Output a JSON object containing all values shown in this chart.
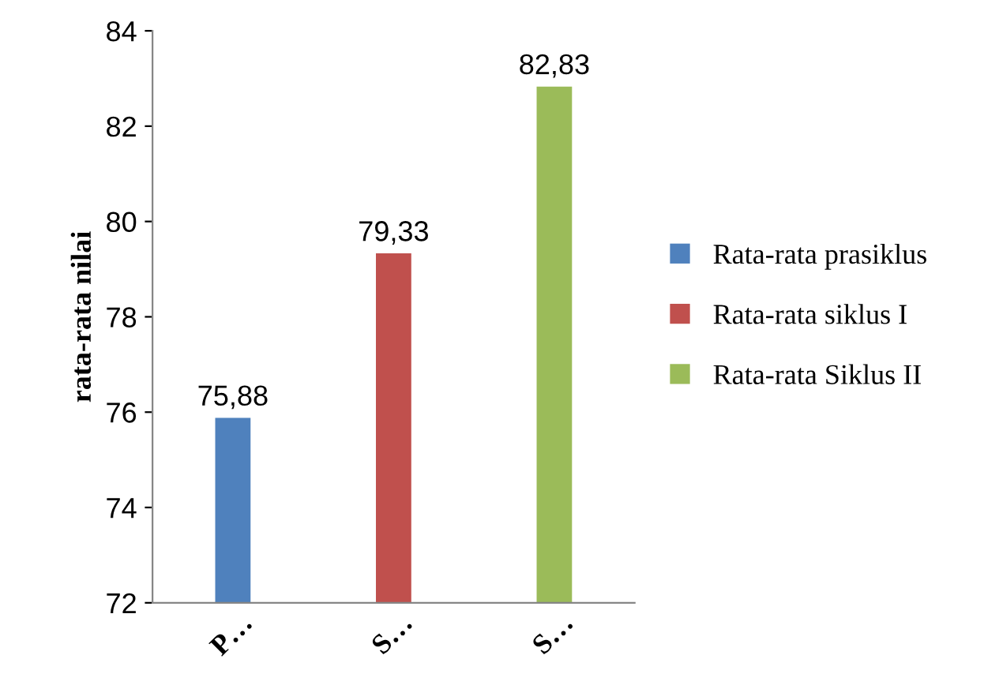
{
  "chart_data": {
    "type": "bar",
    "ylabel": "rata-rata nilai",
    "categories": [
      "P…",
      "S…",
      "S…"
    ],
    "series": [
      {
        "name": "Rata-rata prasiklus",
        "color": "#4f81bd",
        "values": [
          75.88,
          null,
          null
        ],
        "value_labels": [
          "75,88",
          null,
          null
        ]
      },
      {
        "name": "Rata-rata siklus I",
        "color": "#c0504d",
        "values": [
          null,
          79.33,
          null
        ],
        "value_labels": [
          null,
          "79,33",
          null
        ]
      },
      {
        "name": "Rata-rata Siklus II",
        "color": "#9bbb59",
        "values": [
          null,
          null,
          82.83
        ],
        "value_labels": [
          null,
          null,
          "82,83"
        ]
      }
    ],
    "ylim": [
      72,
      84
    ],
    "yticks": [
      72,
      74,
      76,
      78,
      80,
      82,
      84
    ],
    "grid": false,
    "legend": "right"
  }
}
